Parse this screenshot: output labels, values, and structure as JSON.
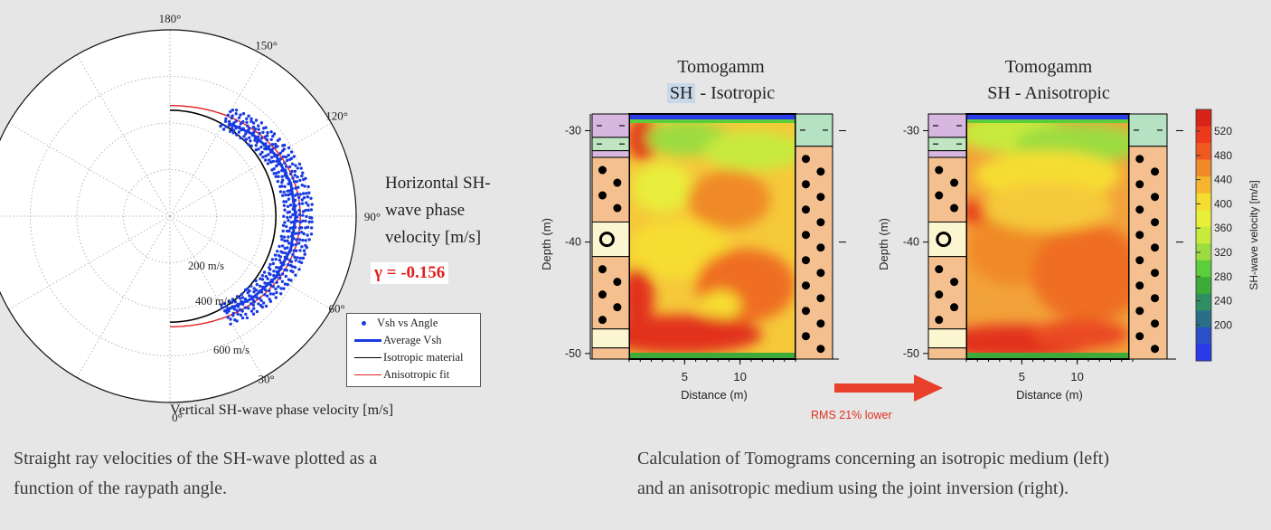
{
  "chart_data": [
    {
      "type": "scatter",
      "subtype": "polar-half",
      "xlabel": "Vertical SH-wave phase velocity [m/s]",
      "ylabel_lines": [
        "Horizontal SH-",
        "wave phase",
        "velocity [m/s]"
      ],
      "angle_ticks": [
        "180°",
        "150°",
        "120°",
        "90°",
        "60°",
        "30°",
        "0°"
      ],
      "radial_ticks": [
        "200 m/s",
        "400 m/s",
        "600 m/s"
      ],
      "radial_tick_values": [
        200,
        400,
        600
      ],
      "r_max": 800,
      "gamma_label": "γ = -0.156",
      "legend": {
        "position": "bottom-right",
        "entries": [
          {
            "label": "Vsh vs Angle",
            "color": "#1a3be0",
            "style": "dot"
          },
          {
            "label": "Average Vsh",
            "color": "#1a3be0",
            "style": "thick-line"
          },
          {
            "label": "Isotropic material",
            "color": "#000000",
            "style": "line"
          },
          {
            "label": "Anisotropic fit",
            "color": "#e02020",
            "style": "line"
          }
        ]
      },
      "isotropic_radius": 455,
      "anisotropic_radius_vertical": 455,
      "anisotropic_radius_horizontal": 540,
      "average_vsh_band": [
        {
          "angle": 30,
          "r": 470
        },
        {
          "angle": 45,
          "r": 500
        },
        {
          "angle": 60,
          "r": 525
        },
        {
          "angle": 75,
          "r": 538
        },
        {
          "angle": 90,
          "r": 540
        },
        {
          "angle": 105,
          "r": 538
        },
        {
          "angle": 120,
          "r": 525
        },
        {
          "angle": 135,
          "r": 500
        },
        {
          "angle": 148,
          "r": 472
        }
      ]
    },
    {
      "type": "heatmap",
      "title_lines": [
        "Tomogamm",
        "SH",
        " - Isotropic"
      ],
      "xlabel": "Distance (m)",
      "ylabel": "Depth (m)",
      "xticks": [
        "5",
        "10"
      ],
      "yticks": [
        "-30",
        "-40",
        "-50"
      ]
    },
    {
      "type": "heatmap",
      "title_lines": [
        "Tomogamm",
        "SH - Anisotropic"
      ],
      "xlabel": "Distance (m)",
      "ylabel": "Depth (m)",
      "xticks": [
        "5",
        "10"
      ],
      "yticks": [
        "-30",
        "-40",
        "-50"
      ]
    }
  ],
  "colorbar": {
    "label": "SH-wave velocity [m/s]",
    "ticks": [
      "520",
      "480",
      "440",
      "400",
      "360",
      "320",
      "280",
      "240",
      "200"
    ],
    "colors": [
      "#d8221a",
      "#ee3a1c",
      "#f05a22",
      "#f08a28",
      "#f5b52e",
      "#f6dd32",
      "#e8ee3a",
      "#c8ea3c",
      "#9cdc40",
      "#5ccd3c",
      "#3daa3a",
      "#2f8e62",
      "#2a6f88",
      "#2a4fc8",
      "#2a3ae8"
    ]
  },
  "arrow_note": "RMS 21% lower",
  "captions": {
    "left": [
      "Straight ray velocities of the SH-wave plotted as a",
      "function of the raypath angle."
    ],
    "right": [
      "Calculation of Tomograms concerning an isotropic medium (left)",
      "and an anisotropic medium using the joint inversion (right)."
    ]
  }
}
